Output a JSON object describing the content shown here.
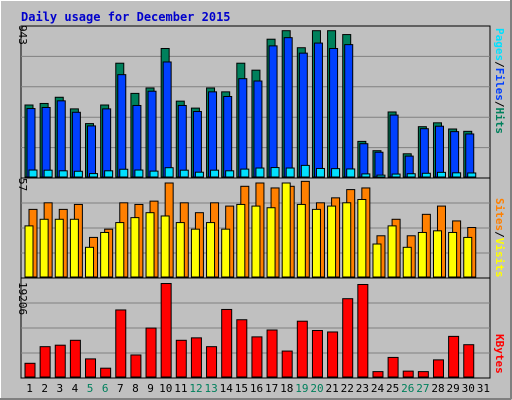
{
  "title": "Daily usage for December 2015",
  "colors": {
    "background": "#c0c0c0",
    "frame_light": "#ffffff",
    "frame_dark": "#808080",
    "grid": "#808080",
    "hits": "#00805c",
    "files": "#0040ff",
    "pages": "#00e0ff",
    "visits": "#ffff00",
    "sites": "#ff8000",
    "kbytes": "#ff0000",
    "weekday_label": "#000000",
    "weekend_label": "#00805c",
    "title": "#0000cc"
  },
  "chart_data": [
    {
      "type": "bar",
      "name": "hits-files-pages",
      "scale_max": 943,
      "scale_max_label": "943",
      "legend": {
        "pages": "Pages",
        "files": "Files",
        "hits": "Hits",
        "sep1": "/",
        "sep2": "/"
      },
      "series": [
        {
          "name": "Hits",
          "values": [
            465,
            475,
            515,
            440,
            345,
            465,
            735,
            540,
            575,
            830,
            490,
            445,
            575,
            550,
            735,
            690,
            890,
            945,
            835,
            945,
            945,
            920,
            230,
            170,
            420,
            150,
            325,
            350,
            310,
            295
          ]
        },
        {
          "name": "Files",
          "values": [
            442,
            449,
            492,
            418,
            330,
            440,
            661,
            462,
            554,
            743,
            462,
            423,
            550,
            520,
            635,
            620,
            847,
            900,
            800,
            865,
            830,
            855,
            215,
            160,
            400,
            135,
            312,
            328,
            293,
            278
          ]
        },
        {
          "name": "Pages",
          "values": [
            45,
            44,
            40,
            37,
            22,
            40,
            50,
            45,
            38,
            60,
            44,
            31,
            44,
            40,
            51,
            58,
            61,
            58,
            75,
            55,
            54,
            52,
            20,
            12,
            19,
            21,
            24,
            30,
            27,
            26
          ]
        }
      ]
    },
    {
      "type": "bar",
      "name": "visits-sites",
      "scale_max": 57,
      "scale_max_label": "57",
      "legend": {
        "sites": "Sites",
        "visits": "Visits",
        "sep": "/"
      },
      "series": [
        {
          "name": "Sites",
          "values": [
            41,
            45,
            41,
            44,
            24,
            29,
            45,
            44,
            46,
            57,
            45,
            39,
            45,
            43,
            55,
            57,
            54,
            55,
            58,
            45,
            48,
            53,
            54,
            25,
            35,
            25,
            38,
            43,
            34,
            30
          ]
        },
        {
          "name": "Visits",
          "values": [
            31,
            35,
            35,
            35,
            18,
            27,
            33,
            36,
            39,
            37,
            33,
            29,
            33,
            29,
            44,
            43,
            42,
            57,
            44,
            41,
            43,
            45,
            47,
            20,
            31,
            18,
            27,
            28,
            27,
            24
          ]
        }
      ]
    },
    {
      "type": "bar",
      "name": "kbytes",
      "scale_max": 19206,
      "scale_max_label": "19206",
      "legend": {
        "kbytes": "KBytes"
      },
      "series": [
        {
          "name": "KBytes",
          "values": [
            2800,
            6200,
            6500,
            7500,
            3700,
            1800,
            13700,
            4500,
            10000,
            19100,
            7500,
            8000,
            6200,
            13800,
            11700,
            8200,
            9600,
            5300,
            11400,
            9500,
            9200,
            16000,
            18900,
            1100,
            4000,
            1200,
            1100,
            3500,
            8300,
            6600
          ]
        }
      ]
    }
  ],
  "days": [
    "1",
    "2",
    "3",
    "4",
    "5",
    "6",
    "7",
    "8",
    "9",
    "10",
    "11",
    "12",
    "13",
    "14",
    "15",
    "16",
    "17",
    "18",
    "19",
    "20",
    "21",
    "22",
    "23",
    "24",
    "25",
    "26",
    "27",
    "28",
    "29",
    "30",
    "31"
  ],
  "weekend_days": [
    5,
    6,
    12,
    13,
    19,
    20,
    26,
    27
  ]
}
